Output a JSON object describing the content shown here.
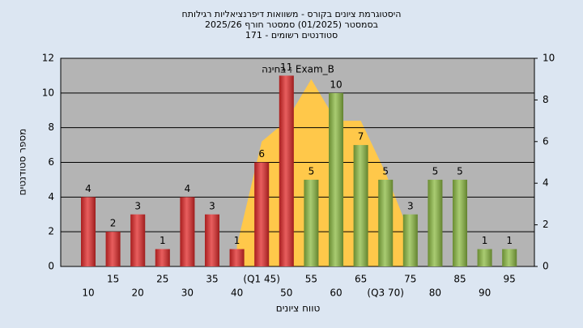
{
  "chart_data": {
    "type": "bar",
    "title": "היסטוגרמת ציונים בקורס - משוואות דיפרנציאליות רגילותח",
    "subtitle": "בסמסטר  (01/2025)  סמסטר חורף  2025/26",
    "subtitle2": "סטודנטים רשומים - 171",
    "annotation": "בחינה : Exam_B",
    "y_label": "מספר סטודנטים",
    "x_label": "טווח ציונים",
    "categories": [
      "10",
      "15",
      "20",
      "25",
      "30",
      "35",
      "40",
      "(Q1 45)",
      "50",
      "55",
      "60",
      "65",
      "(Q3 70)",
      "75",
      "80",
      "85",
      "90",
      "95"
    ],
    "values": [
      4,
      2,
      3,
      1,
      4,
      3,
      1,
      6,
      11,
      5,
      10,
      7,
      5,
      3,
      5,
      5,
      1,
      1
    ],
    "colors": [
      "#e02828",
      "#e02828",
      "#e02828",
      "#e02828",
      "#e02828",
      "#e02828",
      "#e02828",
      "#e02828",
      "#e02828",
      "#8cba42",
      "#8cba42",
      "#8cba42",
      "#8cba42",
      "#8cba42",
      "#8cba42",
      "#8cba42",
      "#8cba42",
      "#8cba42"
    ],
    "area": {
      "axis": "y2",
      "color": "#ffc84a",
      "values": [
        null,
        null,
        null,
        null,
        null,
        null,
        1,
        6,
        7,
        9,
        7,
        7,
        4.5,
        1.5,
        null,
        null,
        null,
        null
      ]
    },
    "ylim": [
      0,
      12
    ],
    "yticks": [
      0,
      2,
      4,
      6,
      8,
      10,
      12
    ],
    "y2lim": [
      0,
      10
    ],
    "y2ticks": [
      0,
      2,
      4,
      6,
      8,
      10
    ],
    "grid": true
  }
}
